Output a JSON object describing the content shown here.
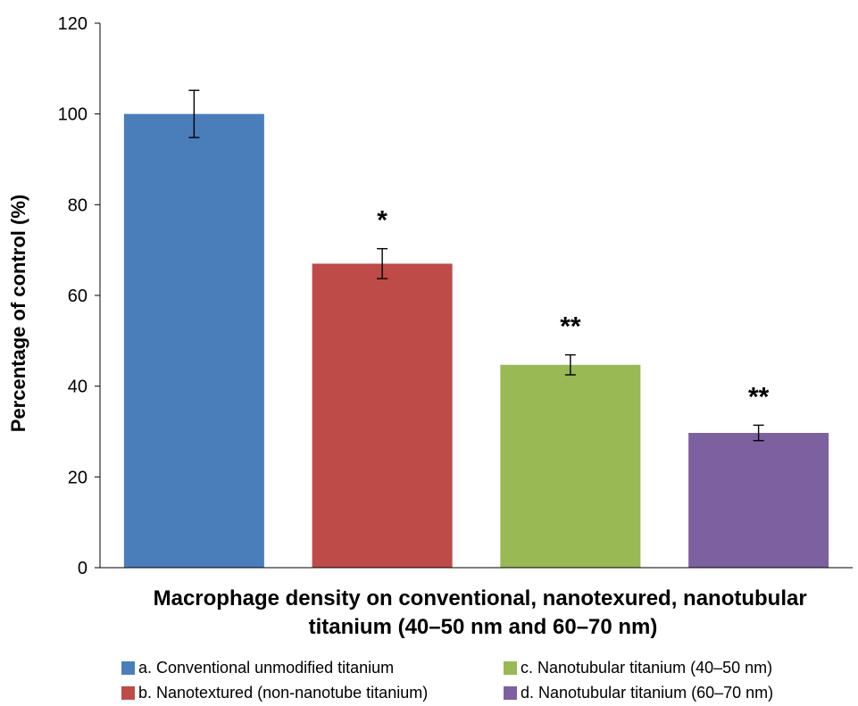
{
  "chart_data": {
    "type": "bar",
    "title": "",
    "xlabel": "Macrophage density on conventional, nanotexured, nanotubular titanium (40–50 nm and 60–70 nm)",
    "xlabel_lines": [
      "Macrophage density on conventional, nanotexured, nanotubular",
      "titanium (40–50 nm and 60–70 nm)"
    ],
    "ylabel": "Percentage of control (%)",
    "ylim": [
      0,
      120
    ],
    "yticks": [
      0,
      20,
      40,
      60,
      80,
      100,
      120
    ],
    "grid": false,
    "legend_position": "bottom",
    "categories": [
      "a. Conventional unmodified titanium",
      "b. Nanotextured (non-nanotube titanium)",
      "c. Nanotubular titanium (40–50 nm)",
      "d. Nanotubular titanium (60–70 nm)"
    ],
    "values": [
      100,
      67,
      44.7,
      29.7
    ],
    "error": [
      5.2,
      3.3,
      2.2,
      1.7
    ],
    "annotations": [
      "",
      "*",
      "**",
      "**"
    ],
    "colors": [
      "#4a7ebb",
      "#be4b48",
      "#98b954",
      "#7d60a0"
    ]
  }
}
